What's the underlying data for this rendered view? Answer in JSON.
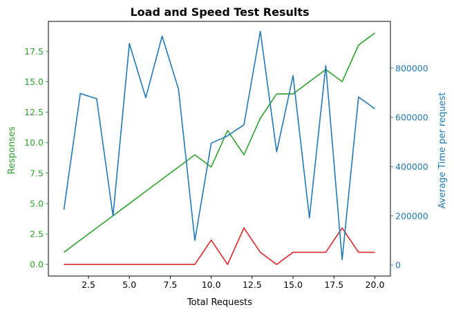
{
  "chart_data": {
    "type": "line",
    "title": "Load and Speed Test Results",
    "xlabel": "Total Requests",
    "ylabel_left": "Responses",
    "ylabel_right": "Average Time per request",
    "xlim": [
      0.05,
      20.95
    ],
    "ylim_left": [
      -0.95,
      19.95
    ],
    "ylim_right": [
      -44500,
      990000
    ],
    "x_ticks": [
      2.5,
      5.0,
      7.5,
      10.0,
      12.5,
      15.0,
      17.5,
      20.0
    ],
    "x_tick_labels": [
      "2.5",
      "5.0",
      "7.5",
      "10.0",
      "12.5",
      "15.0",
      "17.5",
      "20.0"
    ],
    "y_left_ticks": [
      0.0,
      2.5,
      5.0,
      7.5,
      10.0,
      12.5,
      15.0,
      17.5
    ],
    "y_left_tick_labels": [
      "0.0",
      "2.5",
      "5.0",
      "7.5",
      "10.0",
      "12.5",
      "15.0",
      "17.5"
    ],
    "y_right_ticks": [
      0,
      200000,
      400000,
      600000,
      800000
    ],
    "y_right_tick_labels": [
      "0",
      "200000",
      "400000",
      "600000",
      "800000"
    ],
    "grid": false,
    "colors": {
      "left_axis": "#2ca02c",
      "right_axis": "#1f77b4"
    },
    "x": [
      1,
      2,
      3,
      4,
      5,
      6,
      7,
      8,
      9,
      10,
      11,
      12,
      13,
      14,
      15,
      16,
      17,
      18,
      19,
      20
    ],
    "series": [
      {
        "axis": "left",
        "color": "#2ca02c",
        "values": [
          1,
          2,
          3,
          4,
          5,
          6,
          7,
          8,
          9,
          8,
          11,
          9,
          12,
          14,
          14,
          15,
          16,
          15,
          18,
          19
        ]
      },
      {
        "axis": "left",
        "color": "#d62728",
        "values": [
          0,
          0,
          0,
          0,
          0,
          0,
          0,
          0,
          0,
          2,
          0,
          3,
          1,
          0,
          1,
          1,
          1,
          3,
          1,
          1
        ]
      },
      {
        "axis": "right",
        "color": "#1f77b4",
        "values": [
          225000,
          697000,
          676000,
          200000,
          900000,
          680000,
          930000,
          715000,
          100000,
          495000,
          525000,
          570000,
          950000,
          460000,
          770000,
          192000,
          810000,
          22000,
          683000,
          635000
        ]
      }
    ]
  }
}
